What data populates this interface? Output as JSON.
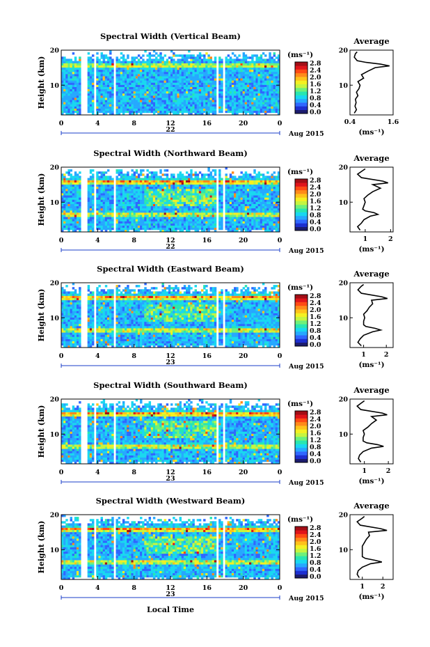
{
  "figure": {
    "xlabel": "Local Time",
    "date_label": "Aug 2015",
    "colorbar_unit": "(ms⁻¹)",
    "colorbar_ticks": [
      "0.0",
      "0.4",
      "0.8",
      "1.2",
      "1.6",
      "2.0",
      "2.4",
      "2.8"
    ],
    "colorscale": [
      "#1c1c6e",
      "#1d2fd0",
      "#2f67ff",
      "#26a8ff",
      "#19d8f0",
      "#29e6b0",
      "#6ff07a",
      "#c6f540",
      "#f4f022",
      "#ffc21a",
      "#ff8a1a",
      "#ff4a14",
      "#e0141a",
      "#a30e16"
    ],
    "average_title": "Average",
    "average_xlabel": "(ms⁻¹)"
  },
  "chart_data": [
    {
      "type": "heatmap",
      "title": "Spectral Width (Vertical Beam)",
      "ylabel": "Height (km)",
      "xticks": [
        "0",
        "4",
        "8",
        "12",
        "16",
        "20",
        "0"
      ],
      "yticks": [
        "10",
        "20"
      ],
      "day_label": "22",
      "colorbar_range": [
        0.0,
        2.8
      ],
      "average_profile": {
        "title": "Average",
        "xticks": [
          "0.4",
          "1.6"
        ],
        "xlim": [
          0.4,
          1.6
        ],
        "yticks": [
          "10",
          "20"
        ],
        "ylim": [
          1.5,
          20
        ],
        "height_km": [
          2,
          3,
          4,
          5,
          6,
          7,
          8,
          9,
          10,
          11,
          12,
          13,
          14,
          15,
          15.5,
          16,
          16.5,
          17,
          18,
          19,
          19.5
        ],
        "width": [
          0.52,
          0.58,
          0.54,
          0.57,
          0.55,
          0.62,
          0.58,
          0.65,
          0.68,
          0.62,
          0.78,
          0.72,
          0.9,
          1.1,
          1.5,
          1.25,
          0.85,
          0.6,
          0.52,
          0.55,
          0.6
        ]
      }
    },
    {
      "type": "heatmap",
      "title": "Spectral Width (Northward Beam)",
      "ylabel": "Height (km)",
      "xticks": [
        "0",
        "4",
        "8",
        "12",
        "16",
        "20",
        "0"
      ],
      "yticks": [
        "10",
        "20"
      ],
      "day_label": "22",
      "colorbar_range": [
        0.0,
        2.8
      ],
      "average_profile": {
        "title": "Average",
        "xticks": [
          "1",
          "2"
        ],
        "xlim": [
          0.4,
          2.1
        ],
        "yticks": [
          "10",
          "20"
        ],
        "ylim": [
          1.5,
          20
        ],
        "height_km": [
          2,
          3,
          4,
          5,
          6,
          6.5,
          7,
          7.5,
          8,
          9,
          10,
          11,
          12,
          13,
          14,
          15,
          15.5,
          16,
          17,
          18,
          19,
          19.5
        ],
        "width": [
          0.8,
          0.7,
          0.85,
          0.95,
          1.2,
          1.5,
          1.35,
          1.0,
          0.9,
          0.95,
          1.0,
          0.95,
          1.1,
          1.3,
          1.6,
          1.3,
          1.9,
          1.7,
          0.85,
          0.7,
          0.9,
          1.0
        ]
      }
    },
    {
      "type": "heatmap",
      "title": "Spectral Width (Eastward Beam)",
      "ylabel": "Height (km)",
      "xticks": [
        "0",
        "4",
        "8",
        "12",
        "16",
        "20",
        "0"
      ],
      "yticks": [
        "10",
        "20"
      ],
      "day_label": "23",
      "colorbar_range": [
        0.0,
        2.8
      ],
      "average_profile": {
        "title": "Average",
        "xticks": [
          "1",
          "2"
        ],
        "xlim": [
          0.4,
          2.3
        ],
        "yticks": [
          "10",
          "20"
        ],
        "ylim": [
          1.5,
          20
        ],
        "height_km": [
          2,
          3,
          4,
          5,
          6,
          6.5,
          7,
          7.5,
          8,
          9,
          10,
          11,
          12,
          13,
          14,
          15,
          15.5,
          16,
          17,
          18,
          19,
          19.5
        ],
        "width": [
          0.9,
          0.75,
          0.85,
          1.0,
          1.4,
          1.75,
          1.5,
          1.1,
          1.0,
          1.0,
          1.05,
          1.0,
          1.15,
          1.25,
          1.4,
          1.35,
          2.05,
          1.8,
          0.9,
          0.75,
          0.9,
          1.0
        ]
      }
    },
    {
      "type": "heatmap",
      "title": "Spectral Width (Southward Beam)",
      "ylabel": "Height (km)",
      "xticks": [
        "0",
        "4",
        "8",
        "12",
        "16",
        "20",
        "0"
      ],
      "yticks": [
        "10",
        "20"
      ],
      "day_label": "23",
      "colorbar_range": [
        0.0,
        2.8
      ],
      "average_profile": {
        "title": "Average",
        "xticks": [
          "1",
          "2"
        ],
        "xlim": [
          0.4,
          2.2
        ],
        "yticks": [
          "10",
          "20"
        ],
        "ylim": [
          1.5,
          20
        ],
        "height_km": [
          2,
          3,
          4,
          5,
          6,
          6.5,
          7,
          7.5,
          8,
          9,
          10,
          11,
          12,
          13,
          14,
          15,
          15.5,
          16,
          17,
          18,
          19,
          19.5
        ],
        "width": [
          0.85,
          0.75,
          0.8,
          0.95,
          1.3,
          1.8,
          1.55,
          1.1,
          0.95,
          0.95,
          1.0,
          0.95,
          1.15,
          1.3,
          1.5,
          1.3,
          1.95,
          1.75,
          0.85,
          0.7,
          0.9,
          1.0
        ]
      }
    },
    {
      "type": "heatmap",
      "title": "Spectral Width (Westward Beam)",
      "ylabel": "Height (km)",
      "xticks": [
        "0",
        "4",
        "8",
        "12",
        "16",
        "20",
        "0"
      ],
      "yticks": [
        "10",
        "20"
      ],
      "day_label": "23",
      "colorbar_range": [
        0.0,
        2.8
      ],
      "average_profile": {
        "title": "Average",
        "xticks": [
          "1",
          "2"
        ],
        "xlim": [
          0.4,
          2.5
        ],
        "yticks": [
          "10",
          "20"
        ],
        "ylim": [
          1.5,
          20
        ],
        "height_km": [
          2,
          3,
          4,
          5,
          6,
          6.5,
          7,
          7.5,
          8,
          9,
          10,
          11,
          12,
          13,
          14,
          15,
          15.5,
          16,
          17,
          18,
          19,
          19.5
        ],
        "width": [
          0.85,
          0.75,
          0.8,
          1.0,
          1.4,
          1.95,
          1.6,
          1.15,
          1.0,
          1.0,
          1.0,
          1.0,
          1.1,
          1.2,
          1.35,
          1.3,
          2.2,
          1.9,
          0.9,
          0.75,
          1.0,
          1.1
        ]
      }
    }
  ]
}
